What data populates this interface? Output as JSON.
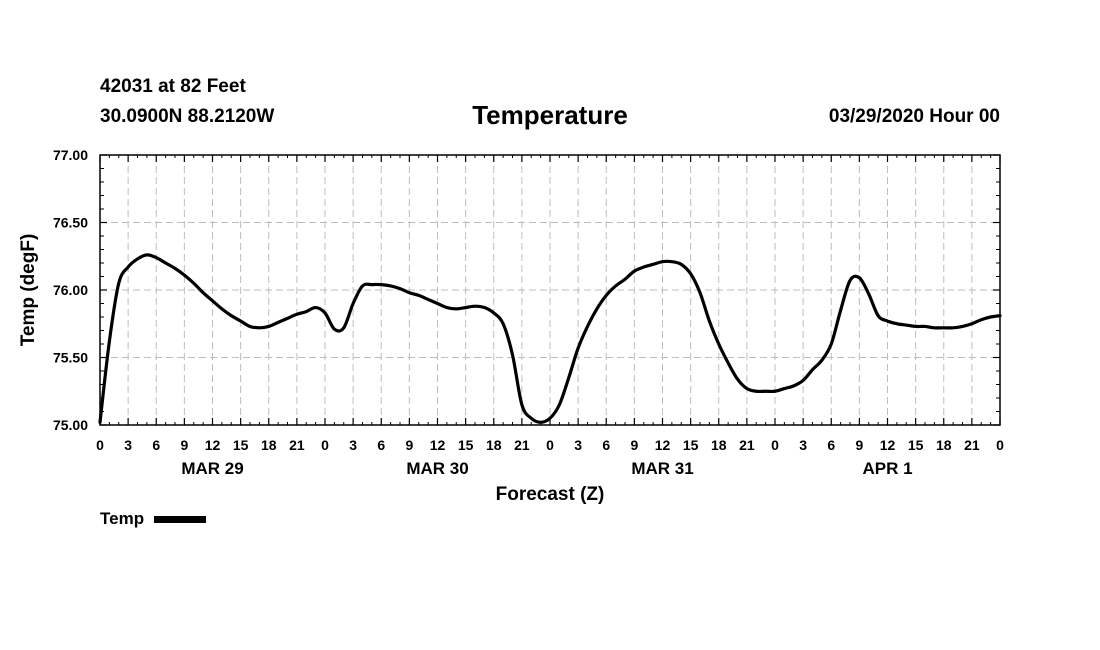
{
  "header": {
    "station": "42031 at 82 Feet",
    "coords": "30.0900N 88.2120W",
    "title": "Temperature",
    "issued": "03/29/2020 Hour 00"
  },
  "legend": {
    "label": "Temp"
  },
  "chart_data": {
    "type": "line",
    "title": "Temperature",
    "xlabel": "Forecast (Z)",
    "ylabel": "Temp (degF)",
    "ylim": [
      75.0,
      77.0
    ],
    "yticks": [
      "75.00",
      "75.50",
      "76.00",
      "76.50",
      "77.00"
    ],
    "xlim": [
      0,
      96
    ],
    "xtick_hours": [
      0,
      3,
      6,
      9,
      12,
      15,
      18,
      21,
      24,
      27,
      30,
      33,
      36,
      39,
      42,
      45,
      48,
      51,
      54,
      57,
      60,
      63,
      66,
      69,
      72,
      75,
      78,
      81,
      84,
      87,
      90,
      93,
      96
    ],
    "xtick_labels": [
      "0",
      "3",
      "6",
      "9",
      "12",
      "15",
      "18",
      "21",
      "0",
      "3",
      "6",
      "9",
      "12",
      "15",
      "18",
      "21",
      "0",
      "3",
      "6",
      "9",
      "12",
      "15",
      "18",
      "21",
      "0",
      "3",
      "6",
      "9",
      "12",
      "15",
      "18",
      "21",
      "0"
    ],
    "day_labels": [
      {
        "label": "MAR 29",
        "hour": 12
      },
      {
        "label": "MAR 30",
        "hour": 36
      },
      {
        "label": "MAR 31",
        "hour": 60
      },
      {
        "label": "APR 1",
        "hour": 84
      }
    ],
    "grid": true,
    "series": [
      {
        "name": "Temp",
        "x": [
          0,
          1,
          2,
          3,
          4,
          5,
          6,
          7,
          8,
          9,
          10,
          11,
          12,
          13,
          14,
          15,
          16,
          17,
          18,
          19,
          20,
          21,
          22,
          23,
          24,
          25,
          26,
          27,
          28,
          29,
          30,
          31,
          32,
          33,
          34,
          35,
          36,
          37,
          38,
          39,
          40,
          41,
          42,
          43,
          44,
          45,
          46,
          47,
          48,
          49,
          50,
          51,
          52,
          53,
          54,
          55,
          56,
          57,
          58,
          59,
          60,
          61,
          62,
          63,
          64,
          65,
          66,
          67,
          68,
          69,
          70,
          71,
          72,
          73,
          74,
          75,
          76,
          77,
          78,
          79,
          80,
          81,
          82,
          83,
          84,
          85,
          86,
          87,
          88,
          89,
          90,
          91,
          92,
          93,
          94,
          95,
          96
        ],
        "values": [
          75.02,
          75.62,
          76.05,
          76.17,
          76.23,
          76.26,
          76.24,
          76.2,
          76.16,
          76.11,
          76.05,
          75.98,
          75.92,
          75.86,
          75.81,
          75.77,
          75.73,
          75.72,
          75.73,
          75.76,
          75.79,
          75.82,
          75.84,
          75.87,
          75.83,
          75.71,
          75.72,
          75.9,
          76.03,
          76.04,
          76.04,
          76.03,
          76.01,
          75.98,
          75.96,
          75.93,
          75.9,
          75.87,
          75.86,
          75.87,
          75.88,
          75.87,
          75.83,
          75.75,
          75.52,
          75.15,
          75.05,
          75.02,
          75.05,
          75.15,
          75.35,
          75.57,
          75.73,
          75.86,
          75.96,
          76.03,
          76.08,
          76.14,
          76.17,
          76.19,
          76.21,
          76.21,
          76.19,
          76.12,
          75.98,
          75.77,
          75.6,
          75.46,
          75.34,
          75.27,
          75.25,
          75.25,
          75.25,
          75.27,
          75.29,
          75.33,
          75.41,
          75.48,
          75.6,
          75.85,
          76.07,
          76.09,
          75.97,
          75.81,
          75.77,
          75.75,
          75.74,
          75.73,
          75.73,
          75.72,
          75.72,
          75.72,
          75.73,
          75.75,
          75.78,
          75.8,
          75.81
        ],
        "color": "#000000"
      }
    ]
  }
}
